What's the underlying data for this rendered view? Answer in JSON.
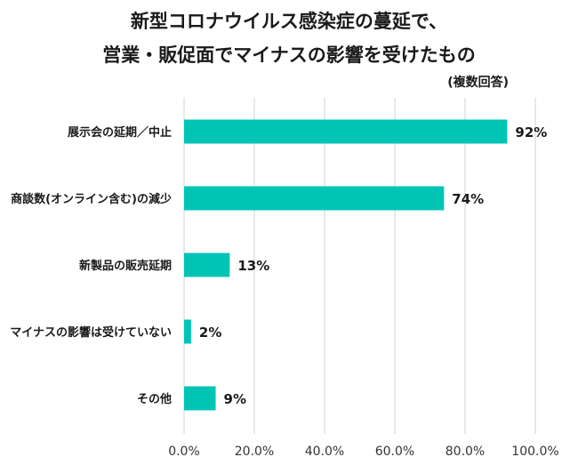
{
  "chart_data": {
    "type": "bar",
    "orientation": "horizontal",
    "title_lines": [
      "新型コロナウイルス感染症の蔓延で、",
      "営業・販促面でマイナスの影響を受けたもの"
    ],
    "note": "(複数回答)",
    "categories": [
      "展示会の延期／中止",
      "商談数(オンライン含む)の減少",
      "新製品の販売延期",
      "マイナスの影響は受けていない",
      "その他"
    ],
    "values": [
      92,
      74,
      13,
      2,
      9
    ],
    "value_labels": [
      "92%",
      "74%",
      "13%",
      "2%",
      "9%"
    ],
    "xlim": [
      0,
      100
    ],
    "x_ticks": [
      0,
      20,
      40,
      60,
      80,
      100
    ],
    "x_tick_labels": [
      "0.0%",
      "20.0%",
      "40.0%",
      "60.0%",
      "80.0%",
      "100.0%"
    ],
    "grid": true,
    "colors": {
      "bar": "#00c5b5",
      "grid": "#d0d0d0"
    }
  }
}
